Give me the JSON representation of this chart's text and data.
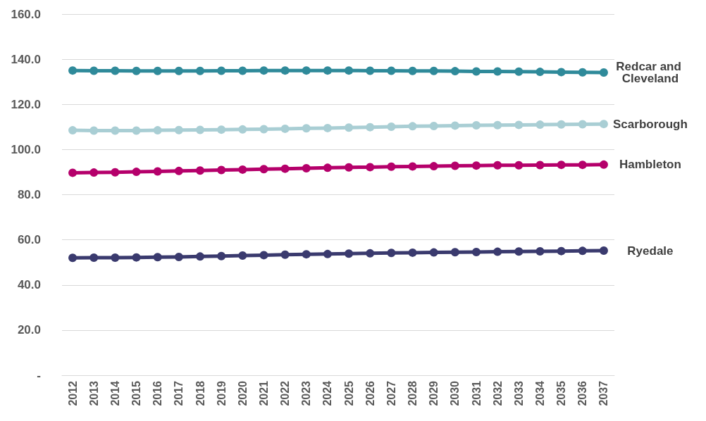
{
  "chart_data": {
    "type": "line",
    "categories": [
      "2012",
      "2013",
      "2014",
      "2015",
      "2016",
      "2017",
      "2018",
      "2019",
      "2020",
      "2021",
      "2022",
      "2023",
      "2024",
      "2025",
      "2026",
      "2027",
      "2028",
      "2029",
      "2030",
      "2031",
      "2032",
      "2033",
      "2034",
      "2035",
      "2036",
      "2037"
    ],
    "series": [
      {
        "name": "Redcar and Cleveland",
        "color": "#2f8a9a",
        "values": [
          135.0,
          134.9,
          134.9,
          134.8,
          134.8,
          134.8,
          134.8,
          134.9,
          134.9,
          135.0,
          135.0,
          135.0,
          135.0,
          135.0,
          134.9,
          134.9,
          134.8,
          134.8,
          134.7,
          134.6,
          134.6,
          134.5,
          134.4,
          134.3,
          134.2,
          134.1
        ]
      },
      {
        "name": "Scarborough",
        "color": "#a9ced4",
        "values": [
          108.5,
          108.4,
          108.4,
          108.4,
          108.5,
          108.6,
          108.7,
          108.8,
          108.9,
          109.0,
          109.2,
          109.4,
          109.5,
          109.7,
          109.9,
          110.1,
          110.3,
          110.4,
          110.6,
          110.7,
          110.8,
          110.9,
          111.0,
          111.1,
          111.2,
          111.3
        ]
      },
      {
        "name": "Hambleton",
        "color": "#b5006b",
        "values": [
          89.7,
          89.8,
          89.9,
          90.1,
          90.3,
          90.5,
          90.7,
          90.9,
          91.1,
          91.3,
          91.5,
          91.7,
          91.9,
          92.1,
          92.2,
          92.4,
          92.5,
          92.6,
          92.8,
          92.9,
          93.0,
          93.0,
          93.1,
          93.2,
          93.2,
          93.3
        ]
      },
      {
        "name": "Ryedale",
        "color": "#3a3a6e",
        "values": [
          52.0,
          52.1,
          52.1,
          52.2,
          52.3,
          52.4,
          52.6,
          52.8,
          53.0,
          53.2,
          53.4,
          53.6,
          53.7,
          53.9,
          54.0,
          54.2,
          54.3,
          54.4,
          54.5,
          54.6,
          54.7,
          54.8,
          54.9,
          55.0,
          55.1,
          55.2
        ]
      }
    ],
    "ylim": [
      0,
      160
    ],
    "yticks": [
      {
        "value": 0,
        "label": "-"
      },
      {
        "value": 20,
        "label": "20.0"
      },
      {
        "value": 40,
        "label": "40.0"
      },
      {
        "value": 60,
        "label": "60.0"
      },
      {
        "value": 80,
        "label": "80.0"
      },
      {
        "value": 100,
        "label": "100.0"
      },
      {
        "value": 120,
        "label": "120.0"
      },
      {
        "value": 140,
        "label": "140.0"
      },
      {
        "value": 160,
        "label": "160.0"
      }
    ],
    "grid": "y",
    "marker": "circle",
    "line_style": "solid"
  }
}
